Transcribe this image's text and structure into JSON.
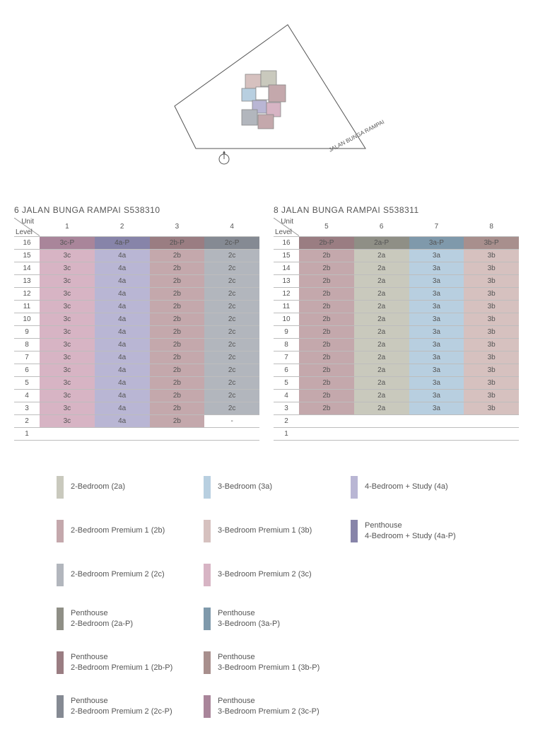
{
  "siteplan": {
    "street_label": "JALAN BUNGA RAMPAI",
    "compass": "N"
  },
  "colors": {
    "2a": "#c9c9bd",
    "2b": "#c4a8ac",
    "2c": "#b2b6bd",
    "3a": "#b8cfe0",
    "3b": "#d6c1bf",
    "3c": "#d7b4c4",
    "4a": "#b9b6d4",
    "2a-P": "#8f8f86",
    "2b-P": "#9a7d82",
    "2c-P": "#858a93",
    "3a-P": "#7f99ab",
    "3b-P": "#a88f8d",
    "3c-P": "#a9859a",
    "4a-P": "#8784a9"
  },
  "tables": [
    {
      "title": "6 JALAN BUNGA RAMPAI S538310",
      "unit_label": "Unit",
      "level_label": "Level",
      "columns": [
        "1",
        "2",
        "3",
        "4"
      ],
      "rows": [
        {
          "level": "16",
          "cells": [
            {
              "t": "3c-P",
              "c": "3c-P"
            },
            {
              "t": "4a-P",
              "c": "4a-P"
            },
            {
              "t": "2b-P",
              "c": "2b-P"
            },
            {
              "t": "2c-P",
              "c": "2c-P"
            }
          ]
        },
        {
          "level": "15",
          "cells": [
            {
              "t": "3c",
              "c": "3c"
            },
            {
              "t": "4a",
              "c": "4a"
            },
            {
              "t": "2b",
              "c": "2b"
            },
            {
              "t": "2c",
              "c": "2c"
            }
          ]
        },
        {
          "level": "14",
          "cells": [
            {
              "t": "3c",
              "c": "3c"
            },
            {
              "t": "4a",
              "c": "4a"
            },
            {
              "t": "2b",
              "c": "2b"
            },
            {
              "t": "2c",
              "c": "2c"
            }
          ]
        },
        {
          "level": "13",
          "cells": [
            {
              "t": "3c",
              "c": "3c"
            },
            {
              "t": "4a",
              "c": "4a"
            },
            {
              "t": "2b",
              "c": "2b"
            },
            {
              "t": "2c",
              "c": "2c"
            }
          ]
        },
        {
          "level": "12",
          "cells": [
            {
              "t": "3c",
              "c": "3c"
            },
            {
              "t": "4a",
              "c": "4a"
            },
            {
              "t": "2b",
              "c": "2b"
            },
            {
              "t": "2c",
              "c": "2c"
            }
          ]
        },
        {
          "level": "11",
          "cells": [
            {
              "t": "3c",
              "c": "3c"
            },
            {
              "t": "4a",
              "c": "4a"
            },
            {
              "t": "2b",
              "c": "2b"
            },
            {
              "t": "2c",
              "c": "2c"
            }
          ]
        },
        {
          "level": "10",
          "cells": [
            {
              "t": "3c",
              "c": "3c"
            },
            {
              "t": "4a",
              "c": "4a"
            },
            {
              "t": "2b",
              "c": "2b"
            },
            {
              "t": "2c",
              "c": "2c"
            }
          ]
        },
        {
          "level": "9",
          "cells": [
            {
              "t": "3c",
              "c": "3c"
            },
            {
              "t": "4a",
              "c": "4a"
            },
            {
              "t": "2b",
              "c": "2b"
            },
            {
              "t": "2c",
              "c": "2c"
            }
          ]
        },
        {
          "level": "8",
          "cells": [
            {
              "t": "3c",
              "c": "3c"
            },
            {
              "t": "4a",
              "c": "4a"
            },
            {
              "t": "2b",
              "c": "2b"
            },
            {
              "t": "2c",
              "c": "2c"
            }
          ]
        },
        {
          "level": "7",
          "cells": [
            {
              "t": "3c",
              "c": "3c"
            },
            {
              "t": "4a",
              "c": "4a"
            },
            {
              "t": "2b",
              "c": "2b"
            },
            {
              "t": "2c",
              "c": "2c"
            }
          ]
        },
        {
          "level": "6",
          "cells": [
            {
              "t": "3c",
              "c": "3c"
            },
            {
              "t": "4a",
              "c": "4a"
            },
            {
              "t": "2b",
              "c": "2b"
            },
            {
              "t": "2c",
              "c": "2c"
            }
          ]
        },
        {
          "level": "5",
          "cells": [
            {
              "t": "3c",
              "c": "3c"
            },
            {
              "t": "4a",
              "c": "4a"
            },
            {
              "t": "2b",
              "c": "2b"
            },
            {
              "t": "2c",
              "c": "2c"
            }
          ]
        },
        {
          "level": "4",
          "cells": [
            {
              "t": "3c",
              "c": "3c"
            },
            {
              "t": "4a",
              "c": "4a"
            },
            {
              "t": "2b",
              "c": "2b"
            },
            {
              "t": "2c",
              "c": "2c"
            }
          ]
        },
        {
          "level": "3",
          "cells": [
            {
              "t": "3c",
              "c": "3c"
            },
            {
              "t": "4a",
              "c": "4a"
            },
            {
              "t": "2b",
              "c": "2b"
            },
            {
              "t": "2c",
              "c": "2c"
            }
          ]
        },
        {
          "level": "2",
          "cells": [
            {
              "t": "3c",
              "c": "3c"
            },
            {
              "t": "4a",
              "c": "4a"
            },
            {
              "t": "2b",
              "c": "2b"
            },
            {
              "t": "-",
              "c": null
            }
          ]
        },
        {
          "level": "1",
          "cells": [
            {
              "t": "",
              "c": null
            },
            {
              "t": "",
              "c": null
            },
            {
              "t": "",
              "c": null
            },
            {
              "t": "",
              "c": null
            }
          ]
        }
      ]
    },
    {
      "title": "8 JALAN BUNGA RAMPAI S538311",
      "unit_label": "Unit",
      "level_label": "Level",
      "columns": [
        "5",
        "6",
        "7",
        "8"
      ],
      "rows": [
        {
          "level": "16",
          "cells": [
            {
              "t": "2b-P",
              "c": "2b-P"
            },
            {
              "t": "2a-P",
              "c": "2a-P"
            },
            {
              "t": "3a-P",
              "c": "3a-P"
            },
            {
              "t": "3b-P",
              "c": "3b-P"
            }
          ]
        },
        {
          "level": "15",
          "cells": [
            {
              "t": "2b",
              "c": "2b"
            },
            {
              "t": "2a",
              "c": "2a"
            },
            {
              "t": "3a",
              "c": "3a"
            },
            {
              "t": "3b",
              "c": "3b"
            }
          ]
        },
        {
          "level": "14",
          "cells": [
            {
              "t": "2b",
              "c": "2b"
            },
            {
              "t": "2a",
              "c": "2a"
            },
            {
              "t": "3a",
              "c": "3a"
            },
            {
              "t": "3b",
              "c": "3b"
            }
          ]
        },
        {
          "level": "13",
          "cells": [
            {
              "t": "2b",
              "c": "2b"
            },
            {
              "t": "2a",
              "c": "2a"
            },
            {
              "t": "3a",
              "c": "3a"
            },
            {
              "t": "3b",
              "c": "3b"
            }
          ]
        },
        {
          "level": "12",
          "cells": [
            {
              "t": "2b",
              "c": "2b"
            },
            {
              "t": "2a",
              "c": "2a"
            },
            {
              "t": "3a",
              "c": "3a"
            },
            {
              "t": "3b",
              "c": "3b"
            }
          ]
        },
        {
          "level": "11",
          "cells": [
            {
              "t": "2b",
              "c": "2b"
            },
            {
              "t": "2a",
              "c": "2a"
            },
            {
              "t": "3a",
              "c": "3a"
            },
            {
              "t": "3b",
              "c": "3b"
            }
          ]
        },
        {
          "level": "10",
          "cells": [
            {
              "t": "2b",
              "c": "2b"
            },
            {
              "t": "2a",
              "c": "2a"
            },
            {
              "t": "3a",
              "c": "3a"
            },
            {
              "t": "3b",
              "c": "3b"
            }
          ]
        },
        {
          "level": "9",
          "cells": [
            {
              "t": "2b",
              "c": "2b"
            },
            {
              "t": "2a",
              "c": "2a"
            },
            {
              "t": "3a",
              "c": "3a"
            },
            {
              "t": "3b",
              "c": "3b"
            }
          ]
        },
        {
          "level": "8",
          "cells": [
            {
              "t": "2b",
              "c": "2b"
            },
            {
              "t": "2a",
              "c": "2a"
            },
            {
              "t": "3a",
              "c": "3a"
            },
            {
              "t": "3b",
              "c": "3b"
            }
          ]
        },
        {
          "level": "7",
          "cells": [
            {
              "t": "2b",
              "c": "2b"
            },
            {
              "t": "2a",
              "c": "2a"
            },
            {
              "t": "3a",
              "c": "3a"
            },
            {
              "t": "3b",
              "c": "3b"
            }
          ]
        },
        {
          "level": "6",
          "cells": [
            {
              "t": "2b",
              "c": "2b"
            },
            {
              "t": "2a",
              "c": "2a"
            },
            {
              "t": "3a",
              "c": "3a"
            },
            {
              "t": "3b",
              "c": "3b"
            }
          ]
        },
        {
          "level": "5",
          "cells": [
            {
              "t": "2b",
              "c": "2b"
            },
            {
              "t": "2a",
              "c": "2a"
            },
            {
              "t": "3a",
              "c": "3a"
            },
            {
              "t": "3b",
              "c": "3b"
            }
          ]
        },
        {
          "level": "4",
          "cells": [
            {
              "t": "2b",
              "c": "2b"
            },
            {
              "t": "2a",
              "c": "2a"
            },
            {
              "t": "3a",
              "c": "3a"
            },
            {
              "t": "3b",
              "c": "3b"
            }
          ]
        },
        {
          "level": "3",
          "cells": [
            {
              "t": "2b",
              "c": "2b"
            },
            {
              "t": "2a",
              "c": "2a"
            },
            {
              "t": "3a",
              "c": "3a"
            },
            {
              "t": "3b",
              "c": "3b"
            }
          ]
        },
        {
          "level": "2",
          "cells": [
            {
              "t": "",
              "c": null
            },
            {
              "t": "",
              "c": null
            },
            {
              "t": "",
              "c": null
            },
            {
              "t": "",
              "c": null
            }
          ]
        },
        {
          "level": "1",
          "cells": [
            {
              "t": "",
              "c": null
            },
            {
              "t": "",
              "c": null
            },
            {
              "t": "",
              "c": null
            },
            {
              "t": "",
              "c": null
            }
          ]
        }
      ]
    }
  ],
  "legend": {
    "columns": [
      [
        {
          "c": "2a",
          "label": "2-Bedroom (2a)"
        },
        {
          "c": "2b",
          "label": "2-Bedroom Premium 1 (2b)"
        },
        {
          "c": "2c",
          "label": "2-Bedroom Premium 2 (2c)"
        },
        {
          "c": "2a-P",
          "label": "Penthouse\n2-Bedroom (2a-P)"
        },
        {
          "c": "2b-P",
          "label": "Penthouse\n2-Bedroom Premium 1 (2b-P)"
        },
        {
          "c": "2c-P",
          "label": "Penthouse\n2-Bedroom Premium 2 (2c-P)"
        }
      ],
      [
        {
          "c": "3a",
          "label": "3-Bedroom (3a)"
        },
        {
          "c": "3b",
          "label": "3-Bedroom Premium 1 (3b)"
        },
        {
          "c": "3c",
          "label": "3-Bedroom Premium 2 (3c)"
        },
        {
          "c": "3a-P",
          "label": "Penthouse\n3-Bedroom (3a-P)"
        },
        {
          "c": "3b-P",
          "label": "Penthouse\n3-Bedroom Premium 1 (3b-P)"
        },
        {
          "c": "3c-P",
          "label": "Penthouse\n3-Bedroom Premium 2 (3c-P)"
        }
      ],
      [
        {
          "c": "4a",
          "label": "4-Bedroom + Study (4a)"
        },
        {
          "c": "4a-P",
          "label": "Penthouse\n4-Bedroom + Study (4a-P)"
        }
      ]
    ]
  }
}
